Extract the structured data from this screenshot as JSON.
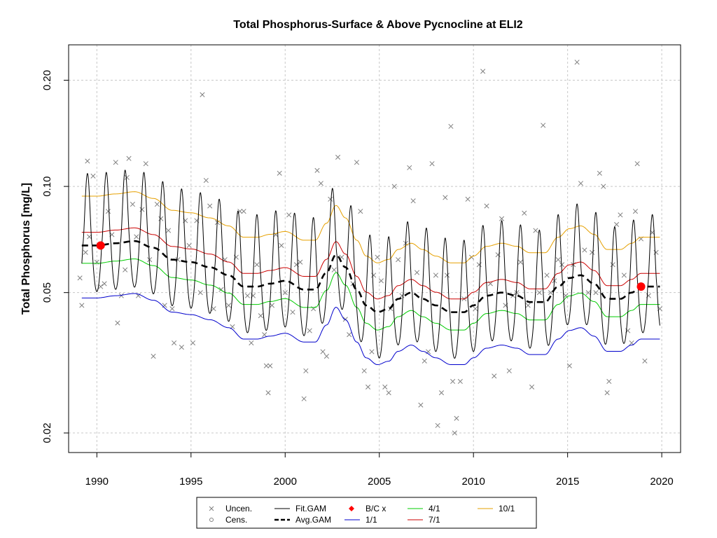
{
  "chart_data": {
    "type": "line",
    "title": "Total Phosphorus-Surface & Above Pycnocline at ELI2",
    "ylabel": "Total Phosphorus [mg/L]",
    "xlabel": "",
    "y_scale": "log",
    "xlim": [
      1988.5,
      2021.0
    ],
    "ylim": [
      0.0176,
      0.252
    ],
    "x_ticks": [
      1990,
      1995,
      2000,
      2005,
      2010,
      2015,
      2020
    ],
    "y_ticks": [
      0.02,
      0.05,
      0.1,
      0.2
    ],
    "y_tick_labels": [
      "0.02",
      "0.05",
      "0.10",
      "0.20"
    ],
    "grid": true,
    "legend_placement": "bottom",
    "legend": [
      {
        "label": "Uncen.",
        "kind": "cross",
        "color": "#808080"
      },
      {
        "label": "Cens.",
        "kind": "circle",
        "color": "#808080"
      },
      {
        "label": "Fit.GAM",
        "kind": "line",
        "color": "#000000"
      },
      {
        "label": "Avg.GAM",
        "kind": "dashed",
        "color": "#000000"
      },
      {
        "label": "B/C x",
        "kind": "diamond",
        "color": "#ff0000"
      },
      {
        "label": "1/1",
        "kind": "line",
        "color": "#0000cc"
      },
      {
        "label": "4/1",
        "kind": "line",
        "color": "#00cc00"
      },
      {
        "label": "7/1",
        "kind": "line",
        "color": "#cc0000"
      },
      {
        "label": "10/1",
        "kind": "line",
        "color": "#e6a000"
      }
    ],
    "x_range": [
      1989.2,
      2019.9
    ],
    "baseline_avg": {
      "x": [
        1989.2,
        1990,
        1991,
        1992,
        1993,
        1994,
        1995,
        1996,
        1997,
        1997.8,
        1998.5,
        1999.2,
        2000,
        2001,
        2001.6,
        2002.2,
        2002.7,
        2003.2,
        2003.8,
        2004.3,
        2004.9,
        2005.5,
        2006,
        2006.7,
        2007.3,
        2008,
        2008.8,
        2009.5,
        2010,
        2010.7,
        2011.5,
        2012.3,
        2013,
        2013.8,
        2014.5,
        2015.1,
        2015.7,
        2016.4,
        2017.1,
        2017.8,
        2018.4,
        2018.9,
        2019.4,
        2019.8
      ],
      "y": [
        0.068,
        0.068,
        0.069,
        0.07,
        0.067,
        0.062,
        0.061,
        0.059,
        0.056,
        0.052,
        0.052,
        0.053,
        0.054,
        0.051,
        0.051,
        0.057,
        0.064,
        0.059,
        0.051,
        0.046,
        0.044,
        0.045,
        0.048,
        0.05,
        0.048,
        0.046,
        0.044,
        0.044,
        0.046,
        0.049,
        0.05,
        0.049,
        0.047,
        0.047,
        0.052,
        0.055,
        0.056,
        0.053,
        0.048,
        0.048,
        0.05,
        0.052,
        0.052,
        0.052
      ]
    },
    "seasonal_offsets": {
      "1/1": 0.71,
      "4/1": 0.89,
      "7/1": 1.09,
      "10/1": 1.38
    },
    "fit_gam": {
      "description": "seasonal oscillation, one cycle per year",
      "peak_ratio": 1.6,
      "trough_ratio": 0.74
    },
    "bc_points": [
      {
        "x": 1990.2,
        "y": 0.068
      },
      {
        "x": 2018.9,
        "y": 0.052
      }
    ],
    "uncensored_points": [
      [
        1989.1,
        0.055
      ],
      [
        1989.2,
        0.046
      ],
      [
        1989.4,
        0.065
      ],
      [
        1989.5,
        0.118
      ],
      [
        1989.6,
        0.072
      ],
      [
        1989.8,
        0.107
      ],
      [
        1990.0,
        0.061
      ],
      [
        1990.2,
        0.052
      ],
      [
        1990.4,
        0.053
      ],
      [
        1990.6,
        0.085
      ],
      [
        1990.8,
        0.073
      ],
      [
        1991.0,
        0.117
      ],
      [
        1991.1,
        0.041
      ],
      [
        1991.3,
        0.049
      ],
      [
        1991.5,
        0.058
      ],
      [
        1991.6,
        0.106
      ],
      [
        1991.7,
        0.12
      ],
      [
        1991.9,
        0.089
      ],
      [
        1992.1,
        0.072
      ],
      [
        1992.2,
        0.049
      ],
      [
        1992.4,
        0.086
      ],
      [
        1992.6,
        0.116
      ],
      [
        1992.8,
        0.062
      ],
      [
        1993.0,
        0.033
      ],
      [
        1993.2,
        0.089
      ],
      [
        1993.4,
        0.081
      ],
      [
        1993.6,
        0.046
      ],
      [
        1993.8,
        0.075
      ],
      [
        1994.0,
        0.045
      ],
      [
        1994.1,
        0.036
      ],
      [
        1994.3,
        0.062
      ],
      [
        1994.5,
        0.035
      ],
      [
        1994.7,
        0.08
      ],
      [
        1994.9,
        0.068
      ],
      [
        1995.1,
        0.036
      ],
      [
        1995.3,
        0.08
      ],
      [
        1995.5,
        0.05
      ],
      [
        1995.6,
        0.182
      ],
      [
        1995.8,
        0.104
      ],
      [
        1996.0,
        0.088
      ],
      [
        1996.2,
        0.045
      ],
      [
        1996.4,
        0.079
      ],
      [
        1996.6,
        0.051
      ],
      [
        1996.8,
        0.062
      ],
      [
        1997.0,
        0.046
      ],
      [
        1997.2,
        0.04
      ],
      [
        1997.4,
        0.063
      ],
      [
        1997.6,
        0.085
      ],
      [
        1997.8,
        0.085
      ],
      [
        1998.0,
        0.049
      ],
      [
        1998.2,
        0.036
      ],
      [
        1998.3,
        0.049
      ],
      [
        1998.5,
        0.06
      ],
      [
        1998.7,
        0.043
      ],
      [
        1998.9,
        0.038
      ],
      [
        1999.0,
        0.031
      ],
      [
        1999.1,
        0.026
      ],
      [
        1999.2,
        0.031
      ],
      [
        1999.3,
        0.046
      ],
      [
        1999.5,
        0.073
      ],
      [
        1999.7,
        0.109
      ],
      [
        1999.8,
        0.068
      ],
      [
        2000.0,
        0.05
      ],
      [
        2000.2,
        0.083
      ],
      [
        2000.4,
        0.044
      ],
      [
        2000.6,
        0.06
      ],
      [
        2000.8,
        0.061
      ],
      [
        2001.0,
        0.025
      ],
      [
        2001.1,
        0.03
      ],
      [
        2001.3,
        0.039
      ],
      [
        2001.5,
        0.045
      ],
      [
        2001.7,
        0.111
      ],
      [
        2001.9,
        0.102
      ],
      [
        2002.0,
        0.034
      ],
      [
        2002.2,
        0.033
      ],
      [
        2002.4,
        0.092
      ],
      [
        2002.6,
        0.058
      ],
      [
        2002.8,
        0.121
      ],
      [
        2003.0,
        0.063
      ],
      [
        2003.2,
        0.042
      ],
      [
        2003.4,
        0.038
      ],
      [
        2003.6,
        0.053
      ],
      [
        2003.8,
        0.117
      ],
      [
        2004.0,
        0.085
      ],
      [
        2004.2,
        0.03
      ],
      [
        2004.4,
        0.027
      ],
      [
        2004.6,
        0.034
      ],
      [
        2004.7,
        0.056
      ],
      [
        2004.9,
        0.063
      ],
      [
        2005.1,
        0.054
      ],
      [
        2005.3,
        0.027
      ],
      [
        2005.5,
        0.026
      ],
      [
        2005.6,
        0.045
      ],
      [
        2005.8,
        0.1
      ],
      [
        2006.0,
        0.062
      ],
      [
        2006.2,
        0.049
      ],
      [
        2006.4,
        0.069
      ],
      [
        2006.6,
        0.113
      ],
      [
        2006.8,
        0.091
      ],
      [
        2007.0,
        0.057
      ],
      [
        2007.2,
        0.024
      ],
      [
        2007.4,
        0.032
      ],
      [
        2007.6,
        0.034
      ],
      [
        2007.8,
        0.116
      ],
      [
        2008.0,
        0.056
      ],
      [
        2008.1,
        0.021
      ],
      [
        2008.3,
        0.026
      ],
      [
        2008.5,
        0.093
      ],
      [
        2008.6,
        0.056
      ],
      [
        2008.8,
        0.148
      ],
      [
        2008.9,
        0.028
      ],
      [
        2009.1,
        0.022
      ],
      [
        2009.0,
        0.02
      ],
      [
        2009.3,
        0.028
      ],
      [
        2009.5,
        0.048
      ],
      [
        2009.7,
        0.092
      ],
      [
        2009.9,
        0.063
      ],
      [
        2010.1,
        0.045
      ],
      [
        2010.3,
        0.06
      ],
      [
        2010.5,
        0.212
      ],
      [
        2010.7,
        0.088
      ],
      [
        2010.9,
        0.053
      ],
      [
        2011.1,
        0.029
      ],
      [
        2011.3,
        0.064
      ],
      [
        2011.5,
        0.081
      ],
      [
        2011.7,
        0.046
      ],
      [
        2011.9,
        0.03
      ],
      [
        2012.1,
        0.049
      ],
      [
        2012.3,
        0.05
      ],
      [
        2012.5,
        0.061
      ],
      [
        2012.7,
        0.084
      ],
      [
        2012.9,
        0.046
      ],
      [
        2013.1,
        0.027
      ],
      [
        2013.3,
        0.075
      ],
      [
        2013.5,
        0.05
      ],
      [
        2013.7,
        0.149
      ],
      [
        2013.9,
        0.056
      ],
      [
        2014.1,
        0.05
      ],
      [
        2014.3,
        0.054
      ],
      [
        2014.5,
        0.062
      ],
      [
        2014.7,
        0.06
      ],
      [
        2014.9,
        0.049
      ],
      [
        2015.1,
        0.031
      ],
      [
        2015.3,
        0.06
      ],
      [
        2015.5,
        0.225
      ],
      [
        2015.7,
        0.102
      ],
      [
        2015.9,
        0.066
      ],
      [
        2016.1,
        0.05
      ],
      [
        2016.3,
        0.065
      ],
      [
        2016.5,
        0.05
      ],
      [
        2016.7,
        0.109
      ],
      [
        2016.9,
        0.1
      ],
      [
        2017.1,
        0.026
      ],
      [
        2017.2,
        0.028
      ],
      [
        2017.4,
        0.06
      ],
      [
        2017.6,
        0.078
      ],
      [
        2017.8,
        0.083
      ],
      [
        2018.0,
        0.056
      ],
      [
        2018.2,
        0.039
      ],
      [
        2018.4,
        0.036
      ],
      [
        2018.6,
        0.085
      ],
      [
        2018.7,
        0.116
      ],
      [
        2018.9,
        0.071
      ],
      [
        2019.1,
        0.032
      ],
      [
        2019.3,
        0.049
      ],
      [
        2019.5,
        0.074
      ],
      [
        2019.7,
        0.065
      ],
      [
        2019.9,
        0.045
      ]
    ]
  }
}
